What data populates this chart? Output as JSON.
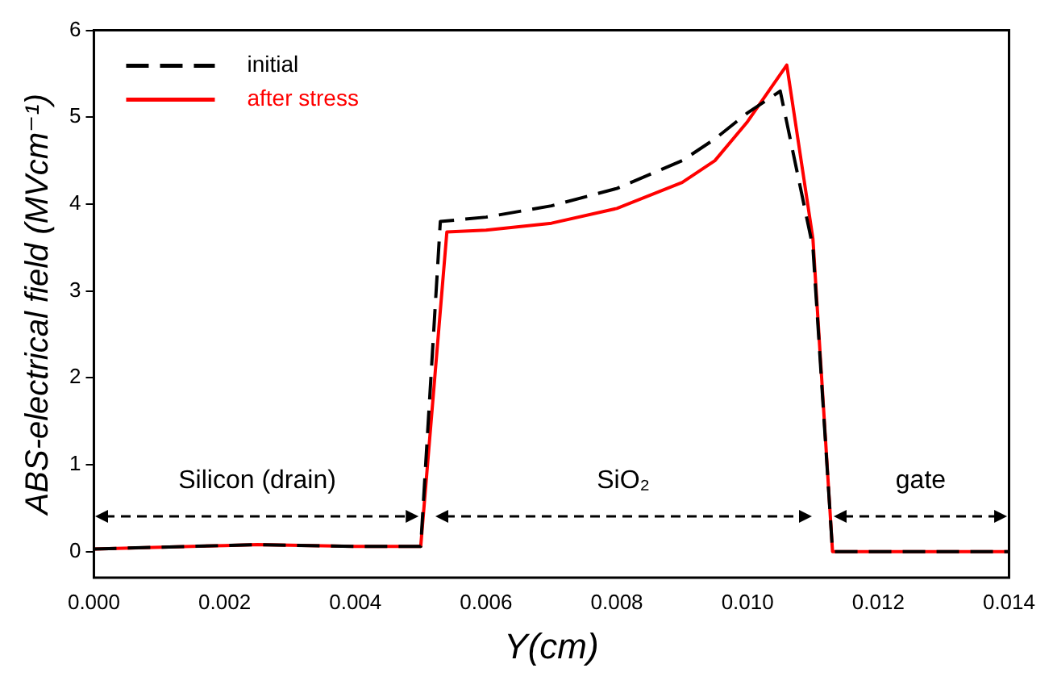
{
  "chart_data": {
    "type": "line",
    "xlabel": "Y(cm)",
    "ylabel": "ABS-electrical field (MVcm⁻¹)",
    "xlim": [
      0,
      0.014
    ],
    "ylim": [
      -0.3,
      6
    ],
    "xticks": [
      {
        "value": 0,
        "label": "0.000"
      },
      {
        "value": 0.002,
        "label": "0.002"
      },
      {
        "value": 0.004,
        "label": "0.004"
      },
      {
        "value": 0.006,
        "label": "0.006"
      },
      {
        "value": 0.008,
        "label": "0.008"
      },
      {
        "value": 0.01,
        "label": "0.010"
      },
      {
        "value": 0.012,
        "label": "0.012"
      },
      {
        "value": 0.014,
        "label": "0.014"
      }
    ],
    "yticks": [
      0,
      1,
      2,
      3,
      4,
      5,
      6
    ],
    "grid": false,
    "legend": "top left",
    "marker": "none",
    "series": [
      {
        "name": "initial",
        "color": "#000000",
        "line_style": "dashed",
        "x": [
          0,
          0.002,
          0.0025,
          0.004,
          0.005,
          0.0053,
          0.006,
          0.007,
          0.008,
          0.009,
          0.0095,
          0.01,
          0.0105,
          0.011,
          0.0113,
          0.014
        ],
        "values": [
          0.03,
          0.07,
          0.08,
          0.06,
          0.06,
          3.8,
          3.85,
          3.98,
          4.18,
          4.5,
          4.75,
          5.05,
          5.3,
          3.5,
          0,
          0
        ]
      },
      {
        "name": "after stress",
        "color": "#ff0000",
        "line_style": "solid",
        "x": [
          0,
          0.002,
          0.0025,
          0.004,
          0.005,
          0.0054,
          0.006,
          0.007,
          0.008,
          0.009,
          0.0095,
          0.01,
          0.0106,
          0.011,
          0.0113,
          0.014
        ],
        "values": [
          0.03,
          0.07,
          0.08,
          0.06,
          0.06,
          3.68,
          3.7,
          3.78,
          3.95,
          4.25,
          4.5,
          4.95,
          5.6,
          3.6,
          0,
          0
        ]
      }
    ],
    "annotations": [
      "Silicon (drain)",
      "SiO₂",
      "gate"
    ]
  }
}
